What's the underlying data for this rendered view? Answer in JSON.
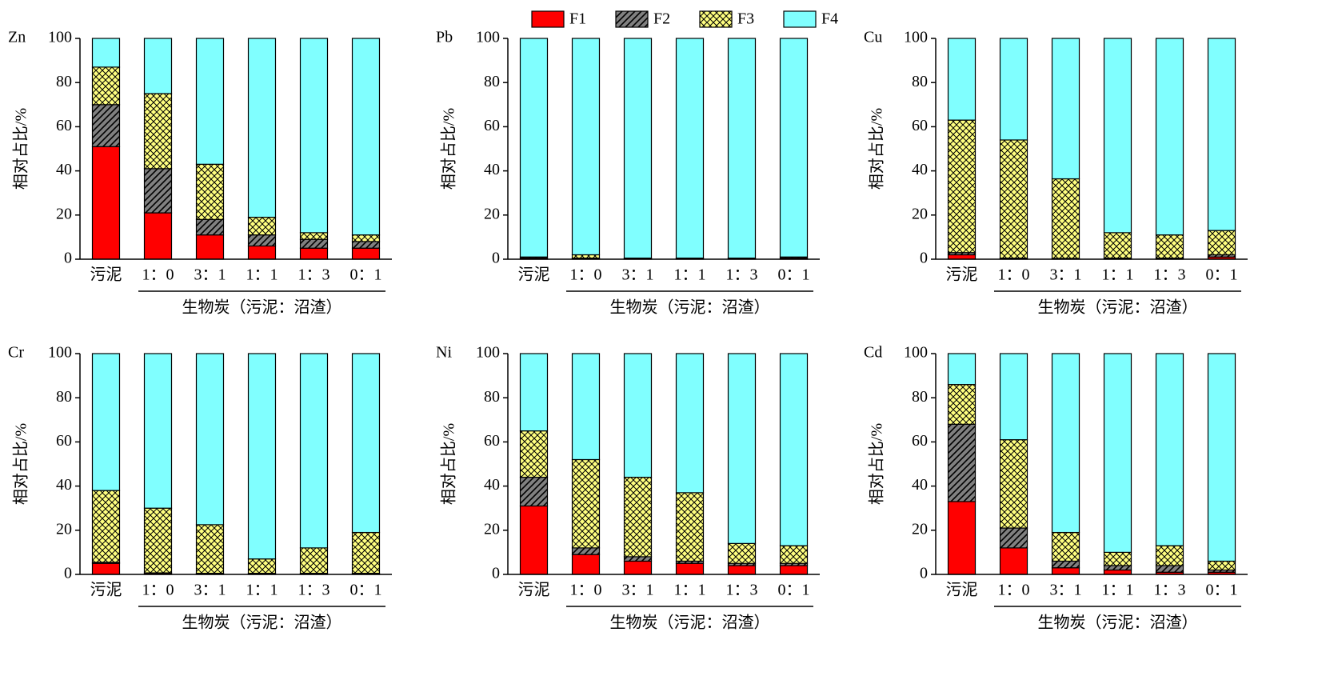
{
  "chart_data": [
    {
      "type": "bar",
      "title": "Zn",
      "ylabel": "相对占比/%",
      "xlabel": "生物炭（污泥：沼渣）",
      "stacked": true,
      "categories": [
        "污泥",
        "1：0",
        "3：1",
        "1：1",
        "1：3",
        "0：1"
      ],
      "series": [
        {
          "name": "F1",
          "color": "#ff0000",
          "hatch": "none",
          "values": [
            51,
            21,
            11,
            6,
            5,
            5
          ]
        },
        {
          "name": "F2",
          "color": "#808080",
          "hatch": "diagonal",
          "values": [
            19,
            20,
            7,
            5,
            4,
            3
          ]
        },
        {
          "name": "F3",
          "color": "#ffff80",
          "hatch": "cross",
          "values": [
            17,
            34,
            25,
            8,
            3,
            3
          ]
        },
        {
          "name": "F4",
          "color": "#80ffff",
          "hatch": "none",
          "values": [
            13,
            25,
            57,
            81,
            88,
            89
          ]
        }
      ],
      "ylim": [
        0,
        100
      ],
      "yticks": [
        0,
        20,
        40,
        60,
        80,
        100
      ]
    },
    {
      "type": "bar",
      "title": "Pb",
      "ylabel": "相对占比/%",
      "xlabel": "生物炭（污泥：沼渣）",
      "stacked": true,
      "categories": [
        "污泥",
        "1：0",
        "3：1",
        "1：1",
        "1：3",
        "0：1"
      ],
      "series": [
        {
          "name": "F1",
          "color": "#ff0000",
          "hatch": "none",
          "values": [
            0.5,
            0.3,
            0.2,
            0.2,
            0.2,
            0.5
          ]
        },
        {
          "name": "F2",
          "color": "#808080",
          "hatch": "diagonal",
          "values": [
            0.5,
            0.2,
            0.1,
            0.1,
            0.1,
            0.5
          ]
        },
        {
          "name": "F3",
          "color": "#ffff80",
          "hatch": "cross",
          "values": [
            0,
            1.5,
            0.2,
            0.2,
            0.2,
            0
          ]
        },
        {
          "name": "F4",
          "color": "#80ffff",
          "hatch": "none",
          "values": [
            99,
            98,
            99.5,
            99.5,
            99.5,
            99
          ]
        }
      ],
      "ylim": [
        0,
        100
      ],
      "yticks": [
        0,
        20,
        40,
        60,
        80,
        100
      ]
    },
    {
      "type": "bar",
      "title": "Cu",
      "ylabel": "相对占比/%",
      "xlabel": "生物炭（污泥：沼渣）",
      "stacked": true,
      "categories": [
        "污泥",
        "1：0",
        "3：1",
        "1：1",
        "1：3",
        "0：1"
      ],
      "series": [
        {
          "name": "F1",
          "color": "#ff0000",
          "hatch": "none",
          "values": [
            2,
            0.3,
            0.2,
            0.3,
            0.3,
            1
          ]
        },
        {
          "name": "F2",
          "color": "#808080",
          "hatch": "diagonal",
          "values": [
            1,
            0.2,
            0.2,
            0.2,
            0.2,
            1
          ]
        },
        {
          "name": "F3",
          "color": "#ffff80",
          "hatch": "cross",
          "values": [
            60,
            53.5,
            36,
            11.5,
            10.5,
            11
          ]
        },
        {
          "name": "F4",
          "color": "#80ffff",
          "hatch": "none",
          "values": [
            37,
            46,
            63.6,
            88,
            89,
            87
          ]
        }
      ],
      "ylim": [
        0,
        100
      ],
      "yticks": [
        0,
        20,
        40,
        60,
        80,
        100
      ]
    },
    {
      "type": "bar",
      "title": "Cr",
      "ylabel": "相对占比/%",
      "xlabel": "生物炭（污泥：沼渣）",
      "stacked": true,
      "categories": [
        "污泥",
        "1：0",
        "3：1",
        "1：1",
        "1：3",
        "0：1"
      ],
      "series": [
        {
          "name": "F1",
          "color": "#ff0000",
          "hatch": "none",
          "values": [
            5,
            0.5,
            0.3,
            0.3,
            0.3,
            0.3
          ]
        },
        {
          "name": "F2",
          "color": "#808080",
          "hatch": "diagonal",
          "values": [
            0.5,
            0.2,
            0.2,
            0.2,
            0.2,
            0.2
          ]
        },
        {
          "name": "F3",
          "color": "#ffff80",
          "hatch": "cross",
          "values": [
            32.5,
            29.3,
            22,
            6.5,
            11.5,
            18.5
          ]
        },
        {
          "name": "F4",
          "color": "#80ffff",
          "hatch": "none",
          "values": [
            62,
            70,
            77.5,
            93,
            88,
            81
          ]
        }
      ],
      "ylim": [
        0,
        100
      ],
      "yticks": [
        0,
        20,
        40,
        60,
        80,
        100
      ]
    },
    {
      "type": "bar",
      "title": "Ni",
      "ylabel": "相对占比/%",
      "xlabel": "生物炭（污泥：沼渣）",
      "stacked": true,
      "categories": [
        "污泥",
        "1：0",
        "3：1",
        "1：1",
        "1：3",
        "0：1"
      ],
      "series": [
        {
          "name": "F1",
          "color": "#ff0000",
          "hatch": "none",
          "values": [
            31,
            9,
            6,
            5,
            4,
            4
          ]
        },
        {
          "name": "F2",
          "color": "#808080",
          "hatch": "diagonal",
          "values": [
            13,
            3,
            2,
            1,
            1,
            1
          ]
        },
        {
          "name": "F3",
          "color": "#ffff80",
          "hatch": "cross",
          "values": [
            21,
            40,
            36,
            31,
            9,
            8
          ]
        },
        {
          "name": "F4",
          "color": "#80ffff",
          "hatch": "none",
          "values": [
            35,
            48,
            56,
            63,
            86,
            87
          ]
        }
      ],
      "ylim": [
        0,
        100
      ],
      "yticks": [
        0,
        20,
        40,
        60,
        80,
        100
      ]
    },
    {
      "type": "bar",
      "title": "Cd",
      "ylabel": "相对占比/%",
      "xlabel": "生物炭（污泥：沼渣）",
      "stacked": true,
      "categories": [
        "污泥",
        "1：0",
        "3：1",
        "1：1",
        "1：3",
        "0：1"
      ],
      "series": [
        {
          "name": "F1",
          "color": "#ff0000",
          "hatch": "none",
          "values": [
            33,
            12,
            3,
            2,
            1,
            1
          ]
        },
        {
          "name": "F2",
          "color": "#808080",
          "hatch": "diagonal",
          "values": [
            35,
            9,
            3,
            2,
            3,
            1
          ]
        },
        {
          "name": "F3",
          "color": "#ffff80",
          "hatch": "cross",
          "values": [
            18,
            40,
            13,
            6,
            9,
            4
          ]
        },
        {
          "name": "F4",
          "color": "#80ffff",
          "hatch": "none",
          "values": [
            14,
            39,
            81,
            90,
            87,
            94
          ]
        }
      ],
      "ylim": [
        0,
        100
      ],
      "yticks": [
        0,
        20,
        40,
        60,
        80,
        100
      ]
    }
  ]
}
